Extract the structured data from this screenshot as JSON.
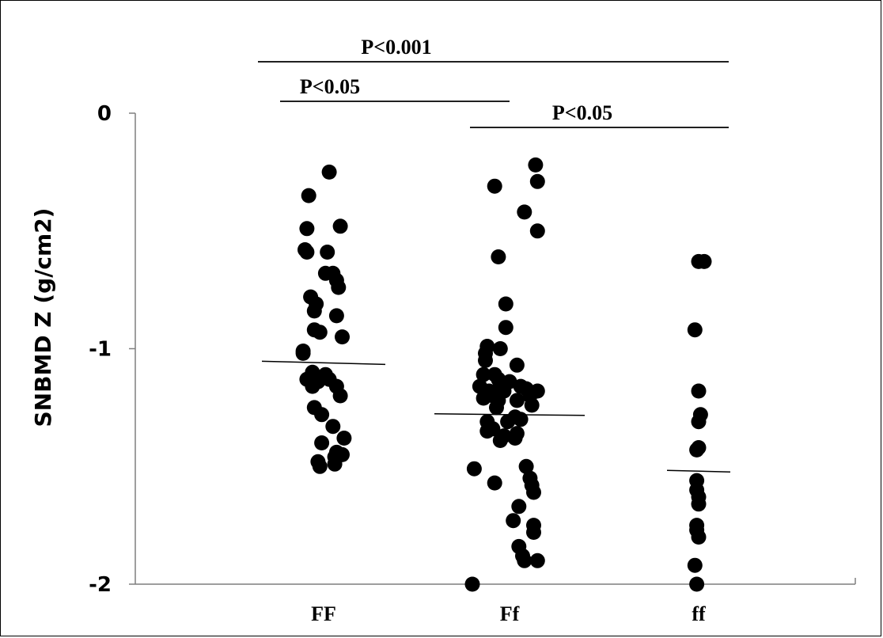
{
  "chart_data": {
    "type": "scatter",
    "ylabel": "SNBMD Z (g/cm2)",
    "ylim": [
      -2,
      0
    ],
    "yticks": [
      0,
      -1,
      -2
    ],
    "categories": [
      "FF",
      "Ff",
      "ff"
    ],
    "series": [
      {
        "category": "FF",
        "mean": -1.06,
        "points": [
          {
            "j": 0.03,
            "y": -0.25
          },
          {
            "j": -0.08,
            "y": -0.35
          },
          {
            "j": -0.09,
            "y": -0.49
          },
          {
            "j": 0.09,
            "y": -0.48
          },
          {
            "j": -0.1,
            "y": -0.58
          },
          {
            "j": -0.09,
            "y": -0.59
          },
          {
            "j": 0.02,
            "y": -0.59
          },
          {
            "j": 0.01,
            "y": -0.68
          },
          {
            "j": 0.05,
            "y": -0.68
          },
          {
            "j": 0.07,
            "y": -0.71
          },
          {
            "j": 0.08,
            "y": -0.74
          },
          {
            "j": -0.07,
            "y": -0.78
          },
          {
            "j": -0.04,
            "y": -0.81
          },
          {
            "j": -0.05,
            "y": -0.84
          },
          {
            "j": 0.07,
            "y": -0.86
          },
          {
            "j": -0.05,
            "y": -0.92
          },
          {
            "j": -0.02,
            "y": -0.93
          },
          {
            "j": 0.1,
            "y": -0.95
          },
          {
            "j": -0.11,
            "y": -1.01
          },
          {
            "j": -0.11,
            "y": -1.02
          },
          {
            "j": -0.06,
            "y": -1.1
          },
          {
            "j": 0.01,
            "y": -1.11
          },
          {
            "j": -0.09,
            "y": -1.13
          },
          {
            "j": 0.03,
            "y": -1.13
          },
          {
            "j": -0.03,
            "y": -1.14
          },
          {
            "j": -0.06,
            "y": -1.16
          },
          {
            "j": 0.07,
            "y": -1.16
          },
          {
            "j": 0.09,
            "y": -1.2
          },
          {
            "j": -0.05,
            "y": -1.25
          },
          {
            "j": -0.01,
            "y": -1.28
          },
          {
            "j": 0.05,
            "y": -1.33
          },
          {
            "j": 0.11,
            "y": -1.38
          },
          {
            "j": -0.01,
            "y": -1.4
          },
          {
            "j": 0.07,
            "y": -1.44
          },
          {
            "j": 0.1,
            "y": -1.45
          },
          {
            "j": 0.06,
            "y": -1.46
          },
          {
            "j": -0.03,
            "y": -1.48
          },
          {
            "j": -0.02,
            "y": -1.5
          },
          {
            "j": 0.06,
            "y": -1.49
          }
        ]
      },
      {
        "category": "Ff",
        "mean": -1.28,
        "points": [
          {
            "j": 0.14,
            "y": -0.22
          },
          {
            "j": 0.15,
            "y": -0.29
          },
          {
            "j": -0.08,
            "y": -0.31
          },
          {
            "j": 0.08,
            "y": -0.42
          },
          {
            "j": 0.15,
            "y": -0.5
          },
          {
            "j": -0.06,
            "y": -0.61
          },
          {
            "j": -0.02,
            "y": -0.81
          },
          {
            "j": -0.02,
            "y": -0.91
          },
          {
            "j": -0.12,
            "y": -0.99
          },
          {
            "j": -0.13,
            "y": -1.02
          },
          {
            "j": -0.05,
            "y": -1.0
          },
          {
            "j": -0.13,
            "y": -1.05
          },
          {
            "j": 0.04,
            "y": -1.07
          },
          {
            "j": -0.14,
            "y": -1.11
          },
          {
            "j": -0.08,
            "y": -1.11
          },
          {
            "j": -0.06,
            "y": -1.13
          },
          {
            "j": 0.0,
            "y": -1.14
          },
          {
            "j": -0.05,
            "y": -1.15
          },
          {
            "j": -0.16,
            "y": -1.16
          },
          {
            "j": 0.06,
            "y": -1.16
          },
          {
            "j": 0.09,
            "y": -1.17
          },
          {
            "j": -0.11,
            "y": -1.18
          },
          {
            "j": -0.03,
            "y": -1.18
          },
          {
            "j": 0.15,
            "y": -1.18
          },
          {
            "j": -0.09,
            "y": -1.2
          },
          {
            "j": 0.11,
            "y": -1.2
          },
          {
            "j": -0.14,
            "y": -1.21
          },
          {
            "j": -0.06,
            "y": -1.22
          },
          {
            "j": 0.04,
            "y": -1.22
          },
          {
            "j": 0.12,
            "y": -1.24
          },
          {
            "j": -0.07,
            "y": -1.25
          },
          {
            "j": 0.03,
            "y": -1.29
          },
          {
            "j": 0.06,
            "y": -1.3
          },
          {
            "j": -0.12,
            "y": -1.31
          },
          {
            "j": -0.01,
            "y": -1.31
          },
          {
            "j": -0.09,
            "y": -1.34
          },
          {
            "j": -0.12,
            "y": -1.35
          },
          {
            "j": 0.04,
            "y": -1.36
          },
          {
            "j": -0.03,
            "y": -1.37
          },
          {
            "j": 0.03,
            "y": -1.38
          },
          {
            "j": -0.05,
            "y": -1.39
          },
          {
            "j": -0.19,
            "y": -1.51
          },
          {
            "j": 0.09,
            "y": -1.5
          },
          {
            "j": 0.11,
            "y": -1.55
          },
          {
            "j": 0.12,
            "y": -1.58
          },
          {
            "j": -0.08,
            "y": -1.57
          },
          {
            "j": 0.13,
            "y": -1.61
          },
          {
            "j": 0.05,
            "y": -1.67
          },
          {
            "j": 0.02,
            "y": -1.73
          },
          {
            "j": 0.13,
            "y": -1.75
          },
          {
            "j": 0.13,
            "y": -1.78
          },
          {
            "j": 0.05,
            "y": -1.84
          },
          {
            "j": 0.07,
            "y": -1.88
          },
          {
            "j": 0.08,
            "y": -1.9
          },
          {
            "j": 0.15,
            "y": -1.9
          },
          {
            "j": -0.2,
            "y": -2.0
          }
        ]
      },
      {
        "category": "ff",
        "mean": -1.52,
        "points": [
          {
            "j": 0.0,
            "y": -0.63
          },
          {
            "j": 0.03,
            "y": -0.63
          },
          {
            "j": -0.02,
            "y": -0.92
          },
          {
            "j": 0.0,
            "y": -1.18
          },
          {
            "j": 0.01,
            "y": -1.28
          },
          {
            "j": 0.0,
            "y": -1.31
          },
          {
            "j": 0.0,
            "y": -1.42
          },
          {
            "j": -0.01,
            "y": -1.43
          },
          {
            "j": -0.01,
            "y": -1.56
          },
          {
            "j": -0.01,
            "y": -1.6
          },
          {
            "j": 0.0,
            "y": -1.63
          },
          {
            "j": 0.0,
            "y": -1.66
          },
          {
            "j": -0.01,
            "y": -1.75
          },
          {
            "j": -0.01,
            "y": -1.77
          },
          {
            "j": 0.0,
            "y": -1.8
          },
          {
            "j": -0.02,
            "y": -1.92
          },
          {
            "j": -0.01,
            "y": -2.0
          }
        ]
      }
    ],
    "comparisons": [
      {
        "from": "FF",
        "to": "ff",
        "label": "P<0.001"
      },
      {
        "from": "FF",
        "to": "Ff",
        "label": "P<0.05"
      },
      {
        "from": "Ff",
        "to": "ff",
        "label": "P<0.05"
      }
    ]
  }
}
